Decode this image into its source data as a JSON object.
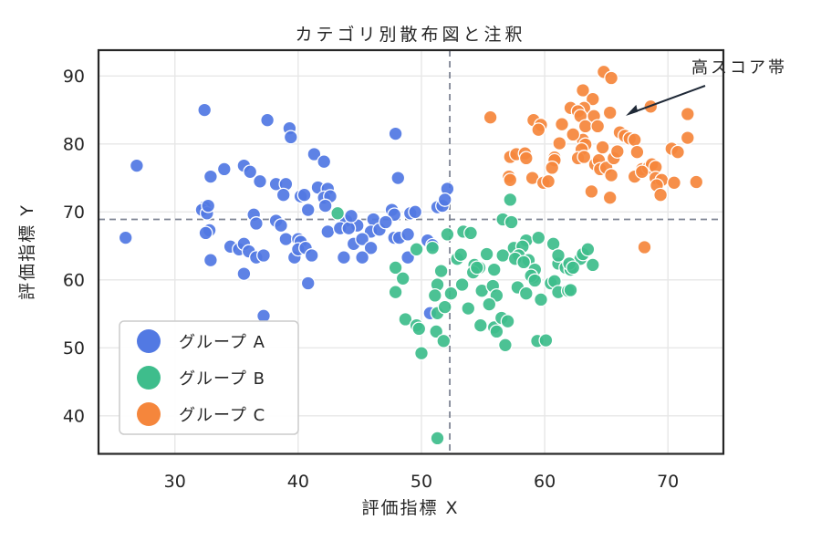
{
  "title": "カテゴリ別散布図と注釈",
  "x_axis": {
    "label": "評価指標 X",
    "ticks": [
      30,
      40,
      50,
      60,
      70
    ],
    "range": [
      23.8,
      74.5
    ]
  },
  "y_axis": {
    "label": "評価指標 Y",
    "ticks": [
      40,
      50,
      60,
      70,
      80,
      90
    ],
    "range": [
      34.4,
      93.8
    ]
  },
  "reference_lines": {
    "vertical_x": 52.3,
    "horizontal_y": 68.9,
    "color": "#7e8494"
  },
  "annotation": {
    "text": "高スコア帯",
    "arrow_tip_xy": [
      66.5,
      84.4
    ],
    "color": "#1f2937"
  },
  "legend": {
    "items": [
      {
        "label": "グループ A",
        "color": "#5279e3"
      },
      {
        "label": "グループ B",
        "color": "#3ebd8c"
      },
      {
        "label": "グループ C",
        "color": "#f5863c"
      }
    ]
  },
  "style": {
    "grid_color": "#e7e7e7",
    "spine_color": "#262626",
    "marker_edge": "#ffffff"
  },
  "chart_data": {
    "type": "scatter",
    "title": "カテゴリ別散布図と注釈",
    "xlabel": "評価指標 X",
    "ylabel": "評価指標 Y",
    "xlim": [
      23.8,
      74.5
    ],
    "ylim": [
      34.4,
      93.8
    ],
    "grid": true,
    "legend_position": "lower left",
    "series": [
      {
        "name": "グループ A",
        "color": "#5279e3",
        "points": [
          [
            32.4,
            85.0
          ],
          [
            37.5,
            83.5
          ],
          [
            39.3,
            82.3
          ],
          [
            39.4,
            81.0
          ],
          [
            47.9,
            81.5
          ],
          [
            26.9,
            76.8
          ],
          [
            32.9,
            75.2
          ],
          [
            34.0,
            76.3
          ],
          [
            35.6,
            76.8
          ],
          [
            36.1,
            75.9
          ],
          [
            36.9,
            74.5
          ],
          [
            38.2,
            74.1
          ],
          [
            39.0,
            74.1
          ],
          [
            38.8,
            72.5
          ],
          [
            40.2,
            72.3
          ],
          [
            41.3,
            78.5
          ],
          [
            42.1,
            77.4
          ],
          [
            48.1,
            75.0
          ],
          [
            52.1,
            73.4
          ],
          [
            41.6,
            73.6
          ],
          [
            42.4,
            73.4
          ],
          [
            40.5,
            72.5
          ],
          [
            42.1,
            72.1
          ],
          [
            42.6,
            72.3
          ],
          [
            40.8,
            70.3
          ],
          [
            42.2,
            70.9
          ],
          [
            32.4,
            70.7
          ],
          [
            32.2,
            70.3
          ],
          [
            32.6,
            69.8
          ],
          [
            32.7,
            70.9
          ],
          [
            26.0,
            66.2
          ],
          [
            32.8,
            67.3
          ],
          [
            32.5,
            66.9
          ],
          [
            36.4,
            69.6
          ],
          [
            36.6,
            68.3
          ],
          [
            38.2,
            68.7
          ],
          [
            38.6,
            68.0
          ],
          [
            39.0,
            66.0
          ],
          [
            40.0,
            66.0
          ],
          [
            40.2,
            65.6
          ],
          [
            47.6,
            70.3
          ],
          [
            47.8,
            69.6
          ],
          [
            49.1,
            69.8
          ],
          [
            49.5,
            70.0
          ],
          [
            51.3,
            70.7
          ],
          [
            51.7,
            70.9
          ],
          [
            51.9,
            71.8
          ],
          [
            43.9,
            68.7
          ],
          [
            44.8,
            68.0
          ],
          [
            46.1,
            68.9
          ],
          [
            45.9,
            67.1
          ],
          [
            42.4,
            67.1
          ],
          [
            43.4,
            67.6
          ],
          [
            44.1,
            67.6
          ],
          [
            44.5,
            65.3
          ],
          [
            45.2,
            66.0
          ],
          [
            45.9,
            64.7
          ],
          [
            43.7,
            63.3
          ],
          [
            45.2,
            63.3
          ],
          [
            47.8,
            66.2
          ],
          [
            48.2,
            66.2
          ],
          [
            48.9,
            66.7
          ],
          [
            50.5,
            65.8
          ],
          [
            50.9,
            65.1
          ],
          [
            48.9,
            63.3
          ],
          [
            34.5,
            64.9
          ],
          [
            35.2,
            64.5
          ],
          [
            35.6,
            65.3
          ],
          [
            36.0,
            64.2
          ],
          [
            36.6,
            63.3
          ],
          [
            39.7,
            63.3
          ],
          [
            32.9,
            62.9
          ],
          [
            35.6,
            60.9
          ],
          [
            37.2,
            63.6
          ],
          [
            40.0,
            64.5
          ],
          [
            40.6,
            64.7
          ],
          [
            41.1,
            63.6
          ],
          [
            40.8,
            59.5
          ],
          [
            37.2,
            54.7
          ],
          [
            50.7,
            55.1
          ],
          [
            44.3,
            69.4
          ],
          [
            46.6,
            67.4
          ],
          [
            47.1,
            68.5
          ]
        ]
      },
      {
        "name": "グループ B",
        "color": "#3ebd8c",
        "points": [
          [
            43.2,
            69.8
          ],
          [
            57.2,
            71.8
          ],
          [
            56.6,
            68.9
          ],
          [
            57.3,
            68.5
          ],
          [
            52.1,
            66.7
          ],
          [
            53.4,
            67.1
          ],
          [
            54.0,
            66.9
          ],
          [
            49.6,
            64.5
          ],
          [
            50.9,
            64.7
          ],
          [
            52.9,
            63.1
          ],
          [
            53.2,
            63.7
          ],
          [
            55.3,
            63.8
          ],
          [
            56.6,
            63.6
          ],
          [
            57.5,
            64.7
          ],
          [
            54.3,
            62.2
          ],
          [
            54.7,
            61.8
          ],
          [
            55.9,
            61.5
          ],
          [
            51.6,
            61.3
          ],
          [
            58.5,
            65.8
          ],
          [
            59.5,
            66.2
          ],
          [
            60.7,
            65.3
          ],
          [
            58.2,
            64.9
          ],
          [
            57.9,
            63.6
          ],
          [
            58.7,
            62.9
          ],
          [
            47.9,
            61.8
          ],
          [
            48.5,
            60.2
          ],
          [
            47.9,
            58.2
          ],
          [
            51.3,
            59.3
          ],
          [
            51.1,
            57.7
          ],
          [
            48.7,
            54.2
          ],
          [
            49.6,
            53.3
          ],
          [
            49.8,
            52.8
          ],
          [
            51.3,
            55.1
          ],
          [
            51.2,
            52.4
          ],
          [
            51.8,
            51.0
          ],
          [
            51.9,
            56.0
          ],
          [
            50.0,
            49.2
          ],
          [
            53.3,
            59.3
          ],
          [
            54.2,
            61.1
          ],
          [
            54.5,
            61.8
          ],
          [
            54.9,
            58.4
          ],
          [
            55.8,
            59.1
          ],
          [
            56.1,
            57.7
          ],
          [
            55.5,
            56.4
          ],
          [
            54.8,
            53.3
          ],
          [
            55.9,
            53.0
          ],
          [
            56.1,
            52.4
          ],
          [
            56.5,
            54.4
          ],
          [
            57.0,
            53.9
          ],
          [
            56.8,
            50.4
          ],
          [
            57.6,
            63.1
          ],
          [
            58.3,
            62.6
          ],
          [
            57.8,
            58.9
          ],
          [
            58.5,
            58.0
          ],
          [
            59.1,
            60.4
          ],
          [
            59.2,
            61.5
          ],
          [
            59.7,
            57.1
          ],
          [
            60.5,
            59.5
          ],
          [
            60.8,
            59.8
          ],
          [
            58.9,
            60.6
          ],
          [
            59.2,
            59.9
          ],
          [
            61.1,
            62.4
          ],
          [
            61.7,
            61.8
          ],
          [
            62.1,
            61.5
          ],
          [
            61.1,
            58.2
          ],
          [
            61.9,
            58.4
          ],
          [
            62.1,
            58.5
          ],
          [
            59.4,
            51.0
          ],
          [
            60.1,
            51.1
          ],
          [
            62.9,
            63.1
          ],
          [
            63.9,
            62.2
          ],
          [
            61.1,
            63.6
          ],
          [
            62.0,
            62.4
          ],
          [
            62.3,
            61.8
          ],
          [
            63.1,
            63.8
          ],
          [
            63.5,
            64.5
          ],
          [
            51.3,
            36.7
          ],
          [
            52.4,
            58.0
          ],
          [
            53.8,
            55.8
          ]
        ]
      },
      {
        "name": "グループ C",
        "color": "#f5863c",
        "points": [
          [
            55.6,
            83.9
          ],
          [
            64.8,
            90.6
          ],
          [
            65.4,
            89.7
          ],
          [
            63.1,
            87.9
          ],
          [
            63.9,
            86.6
          ],
          [
            68.6,
            85.5
          ],
          [
            62.1,
            85.3
          ],
          [
            63.2,
            85.3
          ],
          [
            62.7,
            84.8
          ],
          [
            62.9,
            84.1
          ],
          [
            64.0,
            84.1
          ],
          [
            65.3,
            84.6
          ],
          [
            63.3,
            82.6
          ],
          [
            64.3,
            82.6
          ],
          [
            59.1,
            83.5
          ],
          [
            59.7,
            82.8
          ],
          [
            59.5,
            82.1
          ],
          [
            71.6,
            84.4
          ],
          [
            71.6,
            80.9
          ],
          [
            70.3,
            79.3
          ],
          [
            70.8,
            78.8
          ],
          [
            63.1,
            80.6
          ],
          [
            63.3,
            79.9
          ],
          [
            63.0,
            79.2
          ],
          [
            66.1,
            81.7
          ],
          [
            66.5,
            81.2
          ],
          [
            66.9,
            80.8
          ],
          [
            67.3,
            80.6
          ],
          [
            67.5,
            78.8
          ],
          [
            57.2,
            78.1
          ],
          [
            57.7,
            78.5
          ],
          [
            58.4,
            78.6
          ],
          [
            58.5,
            77.9
          ],
          [
            60.8,
            78.0
          ],
          [
            60.8,
            77.6
          ],
          [
            60.6,
            76.5
          ],
          [
            62.7,
            77.9
          ],
          [
            63.2,
            78.1
          ],
          [
            64.1,
            77.0
          ],
          [
            64.4,
            77.6
          ],
          [
            64.5,
            76.3
          ],
          [
            65.0,
            76.5
          ],
          [
            65.4,
            75.4
          ],
          [
            65.6,
            77.9
          ],
          [
            57.1,
            75.2
          ],
          [
            57.2,
            74.7
          ],
          [
            59.0,
            75.0
          ],
          [
            59.9,
            74.3
          ],
          [
            60.3,
            74.5
          ],
          [
            63.8,
            73.0
          ],
          [
            65.3,
            72.1
          ],
          [
            67.3,
            75.2
          ],
          [
            67.9,
            76.3
          ],
          [
            68.4,
            76.5
          ],
          [
            68.7,
            77.0
          ],
          [
            67.9,
            75.9
          ],
          [
            69.0,
            76.6
          ],
          [
            69.0,
            75.0
          ],
          [
            69.5,
            74.7
          ],
          [
            69.1,
            73.9
          ],
          [
            69.4,
            72.5
          ],
          [
            70.5,
            74.3
          ],
          [
            72.3,
            74.4
          ],
          [
            68.1,
            64.8
          ],
          [
            61.4,
            82.9
          ],
          [
            62.3,
            81.4
          ],
          [
            64.7,
            79.5
          ],
          [
            61.2,
            80.1
          ],
          [
            65.9,
            78.9
          ]
        ]
      }
    ]
  }
}
